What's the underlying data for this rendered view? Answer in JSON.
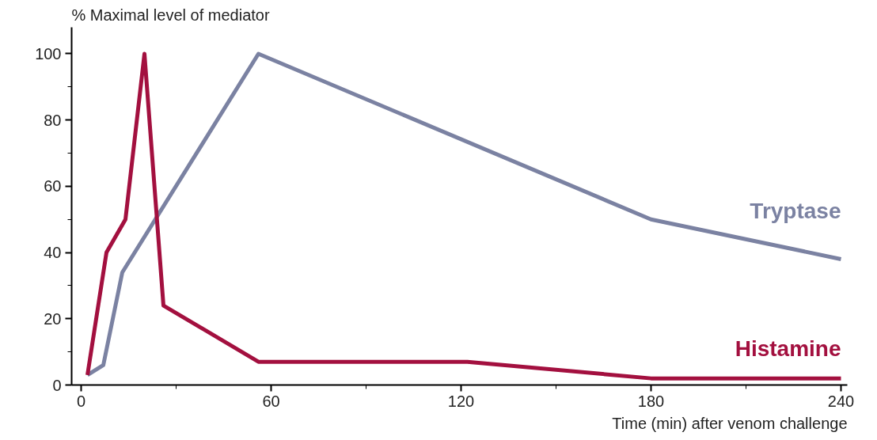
{
  "chart_data": {
    "type": "line",
    "xlabel": "Time (min) after venom challenge",
    "ylabel": "% Maximal level of mediator",
    "xlim": [
      -3,
      242
    ],
    "ylim": [
      0,
      108
    ],
    "xticks": [
      0,
      {
        "value": 30,
        "label": null
      },
      60,
      {
        "value": 90,
        "label": null
      },
      120,
      {
        "value": 150,
        "label": null
      },
      180,
      {
        "value": 210,
        "label": null
      },
      240
    ],
    "yticks": [
      0,
      {
        "value": 10,
        "label": null
      },
      20,
      {
        "value": 30,
        "label": null
      },
      40,
      {
        "value": 50,
        "label": null
      },
      60,
      {
        "value": 70,
        "label": null
      },
      80,
      {
        "value": 90,
        "label": null
      },
      100
    ],
    "grid": false,
    "marker": "none",
    "line_style": "solid",
    "series": [
      {
        "name": "Tryptase",
        "color": "#7b82a2",
        "x": [
          2,
          7,
          13,
          56,
          180,
          240
        ],
        "values": [
          3,
          6,
          34,
          100,
          50,
          38
        ]
      },
      {
        "name": "Histamine",
        "color": "#a3103f",
        "x": [
          2,
          8,
          14,
          20,
          26,
          56,
          122,
          180,
          240
        ],
        "values": [
          3,
          40,
          50,
          100,
          24,
          7,
          7,
          2,
          2
        ]
      }
    ]
  }
}
